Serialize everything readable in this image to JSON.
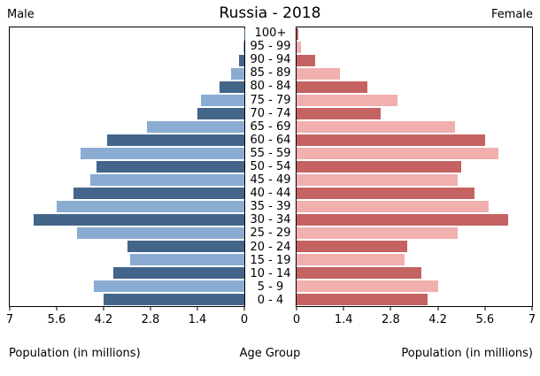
{
  "title": "Russia - 2018",
  "male_header": "Male",
  "female_header": "Female",
  "xlabel_left": "Population (in millions)",
  "xlabel_center": "Age Group",
  "xlabel_right": "Population (in millions)",
  "colors": {
    "male_dark": "#44658A",
    "male_light": "#8AACD3",
    "female_dark": "#C46362",
    "female_light": "#F1AFAE",
    "axis": "#000000",
    "background": "#FFFFFF"
  },
  "chart_data": {
    "type": "bar",
    "variant": "population_pyramid",
    "title": "Russia - 2018",
    "left_series_header": "Male",
    "right_series_header": "Female",
    "categories_top_to_bottom": [
      "100+",
      "95 - 99",
      "90 - 94",
      "85 - 89",
      "80 - 84",
      "75 - 79",
      "70 - 74",
      "65 - 69",
      "60 - 64",
      "55 - 59",
      "50 - 54",
      "45 - 49",
      "40 - 44",
      "35 - 39",
      "30 - 34",
      "25 - 29",
      "20 - 24",
      "15 - 19",
      "10 - 14",
      "5 - 9",
      "0 - 4"
    ],
    "series": [
      {
        "name": "Male",
        "side": "left",
        "values_top_to_bottom": [
          0.01,
          0.03,
          0.16,
          0.4,
          0.75,
          1.3,
          1.4,
          2.9,
          4.1,
          4.9,
          4.4,
          4.6,
          5.1,
          5.6,
          6.3,
          5.0,
          3.5,
          3.4,
          3.9,
          4.5,
          4.2
        ]
      },
      {
        "name": "Female",
        "side": "right",
        "values_top_to_bottom": [
          0.04,
          0.13,
          0.56,
          1.3,
          2.1,
          3.0,
          2.5,
          4.7,
          5.6,
          6.0,
          4.9,
          4.8,
          5.3,
          5.7,
          6.3,
          4.8,
          3.3,
          3.2,
          3.7,
          4.2,
          3.9
        ]
      }
    ],
    "xlim": [
      0,
      7
    ],
    "x_ticks": [
      0,
      1.4,
      2.8,
      4.2,
      5.6,
      7
    ],
    "x_tick_labels": [
      "0",
      "1.4",
      "2.8",
      "4.2",
      "5.6",
      "7"
    ],
    "xlabel_left": "Population (in millions)",
    "center_label": "Age Group",
    "xlabel_right": "Population (in millions)",
    "units": "millions",
    "grid": false,
    "bar_style": "alternating dark/light shades; blue for male (left, right-anchored), rose/pink for female (right, left-anchored)"
  }
}
